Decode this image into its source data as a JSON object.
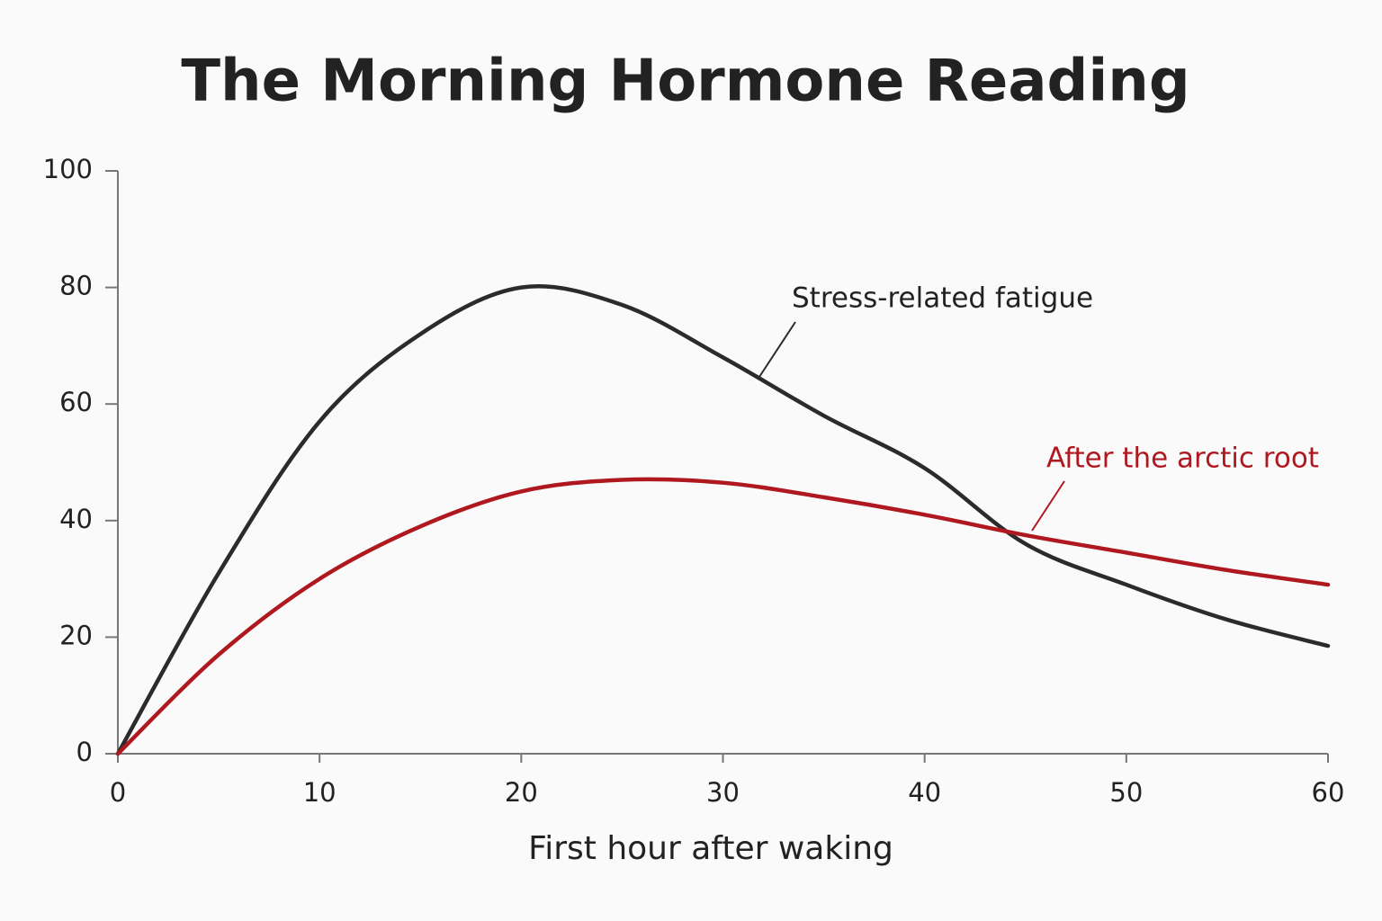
{
  "chart_data": {
    "type": "line",
    "title": "The Morning Hormone Reading",
    "x_label": "First hour after waking",
    "x": [
      0,
      5,
      10,
      15,
      20,
      25,
      30,
      35,
      40,
      45,
      50,
      55,
      60
    ],
    "series": [
      {
        "name": "Stress-related fatigue",
        "color": "#2b2b2b",
        "values": [
          0,
          31,
          57,
          72,
          80,
          77,
          68,
          58,
          49,
          36,
          29,
          23,
          18.5
        ]
      },
      {
        "name": "After the arctic root",
        "color": "#b01820",
        "values": [
          0,
          17,
          30,
          39,
          45,
          47,
          46.5,
          44,
          41,
          37.5,
          34.5,
          31.5,
          29
        ]
      }
    ],
    "xlim": [
      0,
      60
    ],
    "xticks": [
      0,
      10,
      20,
      30,
      40,
      50,
      60
    ],
    "ylim": [
      0,
      100
    ],
    "yticks": [
      0,
      20,
      40,
      60,
      80,
      100
    ],
    "grid": false
  }
}
